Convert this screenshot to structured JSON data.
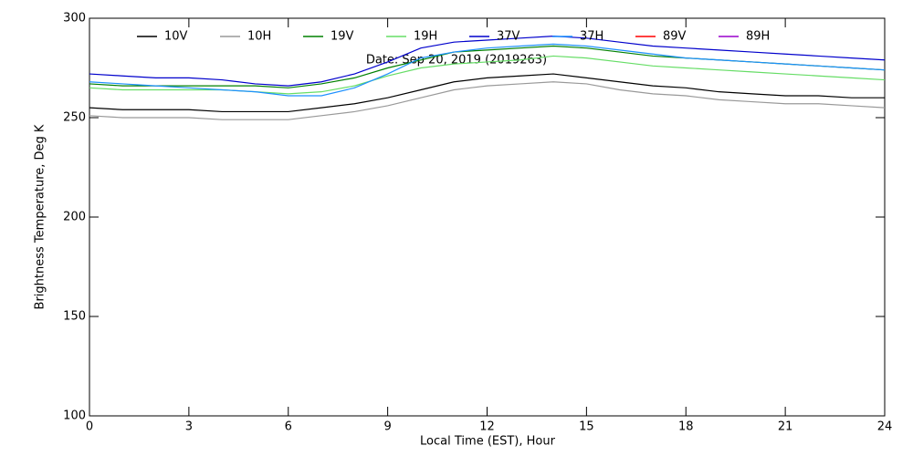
{
  "chart_data": {
    "type": "line",
    "subtitle": "Date: Sep 20, 2019 (2019263)",
    "xlabel": "Local Time (EST), Hour",
    "ylabel": "Brightness Temperature, Deg K",
    "x": [
      0,
      1,
      2,
      3,
      4,
      5,
      6,
      7,
      8,
      9,
      10,
      11,
      12,
      13,
      14,
      15,
      16,
      17,
      18,
      19,
      20,
      21,
      22,
      23,
      24
    ],
    "xlim": [
      0,
      24
    ],
    "xticks": [
      0,
      3,
      6,
      9,
      12,
      15,
      18,
      21,
      24
    ],
    "ylim": [
      100,
      300
    ],
    "yticks": [
      100,
      150,
      200,
      250,
      300
    ],
    "legend": "top",
    "series": [
      {
        "name": "10V",
        "color": "#000000",
        "values": [
          255,
          254,
          254,
          254,
          253,
          253,
          253,
          255,
          257,
          260,
          264,
          268,
          270,
          271,
          272,
          270,
          268,
          266,
          265,
          263,
          262,
          261,
          261,
          260,
          260
        ]
      },
      {
        "name": "10H",
        "color": "#999999",
        "values": [
          251,
          250,
          250,
          250,
          249,
          249,
          249,
          251,
          253,
          256,
          260,
          264,
          266,
          267,
          268,
          267,
          264,
          262,
          261,
          259,
          258,
          257,
          257,
          256,
          255
        ]
      },
      {
        "name": "19V",
        "color": "#008000",
        "values": [
          267,
          266,
          266,
          266,
          266,
          266,
          265,
          267,
          270,
          275,
          279,
          283,
          284,
          285,
          286,
          285,
          283,
          281,
          280,
          279,
          278,
          277,
          276,
          275,
          274
        ]
      },
      {
        "name": "19H",
        "color": "#66dd66",
        "values": [
          265,
          264,
          264,
          264,
          264,
          263,
          262,
          263,
          266,
          271,
          275,
          277,
          278,
          279,
          281,
          280,
          278,
          276,
          275,
          274,
          273,
          272,
          271,
          270,
          269
        ]
      },
      {
        "name": "37V",
        "color": "#0000cc",
        "values": [
          272,
          271,
          270,
          270,
          269,
          267,
          266,
          268,
          272,
          278,
          285,
          288,
          289,
          290,
          291,
          290,
          288,
          286,
          285,
          284,
          283,
          282,
          281,
          280,
          279
        ]
      },
      {
        "name": "37H",
        "color": "#1e90ff",
        "values": [
          268,
          267,
          266,
          265,
          264,
          263,
          261,
          261,
          265,
          272,
          280,
          283,
          285,
          286,
          287,
          286,
          284,
          282,
          280,
          279,
          278,
          277,
          276,
          275,
          274
        ]
      },
      {
        "name": "89V",
        "color": "#ff0000",
        "values": [
          null,
          null,
          null,
          null,
          null,
          null,
          null,
          null,
          null,
          null,
          null,
          null,
          null,
          null,
          null,
          null,
          null,
          null,
          null,
          null,
          null,
          null,
          null,
          null,
          null
        ]
      },
      {
        "name": "89H",
        "color": "#9900cc",
        "values": [
          null,
          null,
          null,
          null,
          null,
          null,
          null,
          null,
          null,
          null,
          null,
          null,
          null,
          null,
          null,
          null,
          null,
          null,
          null,
          null,
          null,
          null,
          null,
          null,
          null
        ]
      }
    ]
  }
}
